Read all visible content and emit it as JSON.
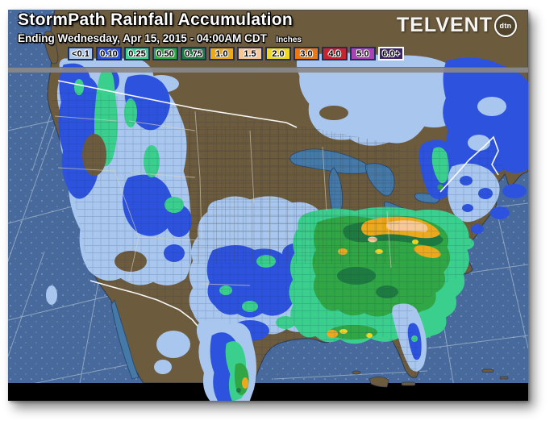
{
  "header": {
    "title": "StormPath Rainfall Accumulation",
    "subtitle": "Ending Wednesday, Apr 15, 2015 - 04:00AM CDT",
    "units_label": "Inches",
    "logo": {
      "brand": "TELVENT",
      "badge": "dtn"
    }
  },
  "legend": {
    "items": [
      {
        "label": "<0.1",
        "color": "#a9c7ee",
        "border": "#1d2f5c"
      },
      {
        "label": "0.10",
        "color": "#2d53de",
        "border": "#1d2f5c"
      },
      {
        "label": "0.25",
        "color": "#3bcf8e",
        "border": "#1d2f5c"
      },
      {
        "label": "0.50",
        "color": "#30a744",
        "border": "#1d2f5c"
      },
      {
        "label": "0.75",
        "color": "#1e7b40",
        "border": "#1d2f5c"
      },
      {
        "label": "1.0",
        "color": "#edа91e",
        "border": "#1d2f5c"
      },
      {
        "label": "1.5",
        "color": "#f7c795",
        "border": "#1d2f5c"
      },
      {
        "label": "2.0",
        "color": "#eed823",
        "border": "#1d2f5c"
      },
      {
        "label": "3.0",
        "color": "#e97917",
        "border": "#1d2f5c"
      },
      {
        "label": "4.0",
        "color": "#c9232b",
        "border": "#1d2f5c"
      },
      {
        "label": "5.0",
        "color": "#a845b4",
        "border": "#1d2f5c"
      },
      {
        "label": "6.0+",
        "color": "#3a2363",
        "border": "#ffffff"
      }
    ]
  },
  "map": {
    "region_label": "Continental United States with southern Canada and northern Mexico",
    "colors": {
      "ocean": "#47699b",
      "land": "#6c5b3d",
      "lakes": "#4579a8",
      "outside_projection": "#000000",
      "divider_bar": "#898989",
      "national_border": "#ffffff"
    }
  }
}
